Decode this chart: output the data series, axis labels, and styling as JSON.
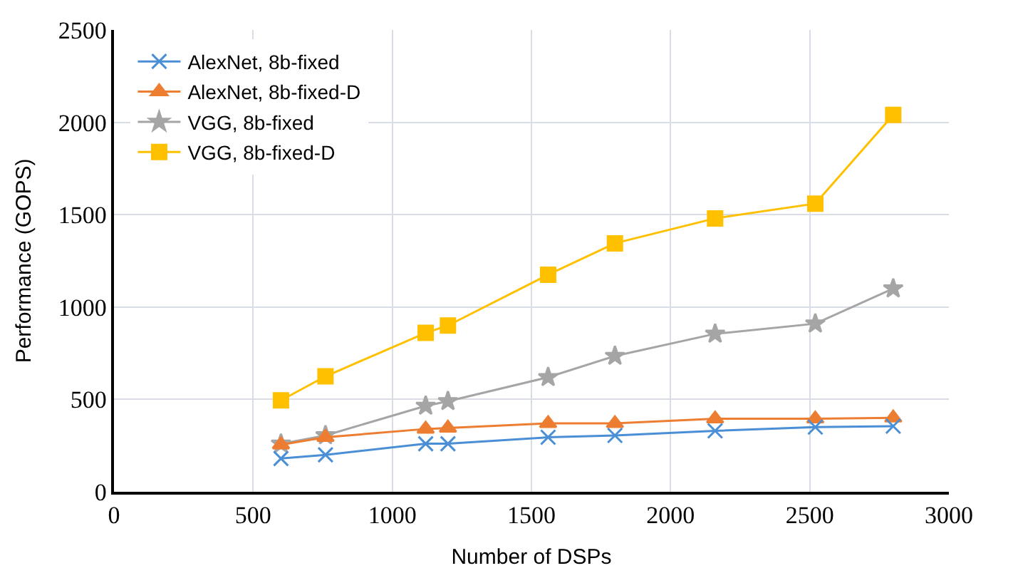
{
  "chart_data": {
    "type": "line",
    "xlabel": "Number of DSPs",
    "ylabel": "Performance (GOPS)",
    "x": [
      600,
      760,
      1120,
      1200,
      1560,
      1800,
      2160,
      2520,
      2800
    ],
    "xlim": [
      0,
      3000
    ],
    "xticks": [
      0,
      500,
      1000,
      1500,
      2000,
      2500,
      3000
    ],
    "ylim": [
      0,
      2500
    ],
    "yticks": [
      0,
      500,
      1000,
      1500,
      2000,
      2500
    ],
    "grid": true,
    "legend": "top left",
    "series": [
      {
        "name": "AlexNet, 8b-fixed",
        "color": "#4a8fd6",
        "marker": "cross",
        "values": [
          180,
          200,
          260,
          260,
          295,
          305,
          330,
          350,
          355
        ]
      },
      {
        "name": "AlexNet, 8b-fixed-D",
        "color": "#ed7d31",
        "marker": "triangle",
        "values": [
          255,
          295,
          340,
          345,
          370,
          370,
          395,
          395,
          400
        ]
      },
      {
        "name": "VGG, 8b-fixed",
        "color": "#a5a5a5",
        "marker": "star",
        "values": [
          260,
          305,
          465,
          490,
          620,
          735,
          855,
          910,
          1100
        ]
      },
      {
        "name": "VGG, 8b-fixed-D",
        "color": "#ffc000",
        "marker": "square",
        "values": [
          495,
          625,
          860,
          900,
          1175,
          1345,
          1480,
          1560,
          2040
        ]
      }
    ]
  }
}
